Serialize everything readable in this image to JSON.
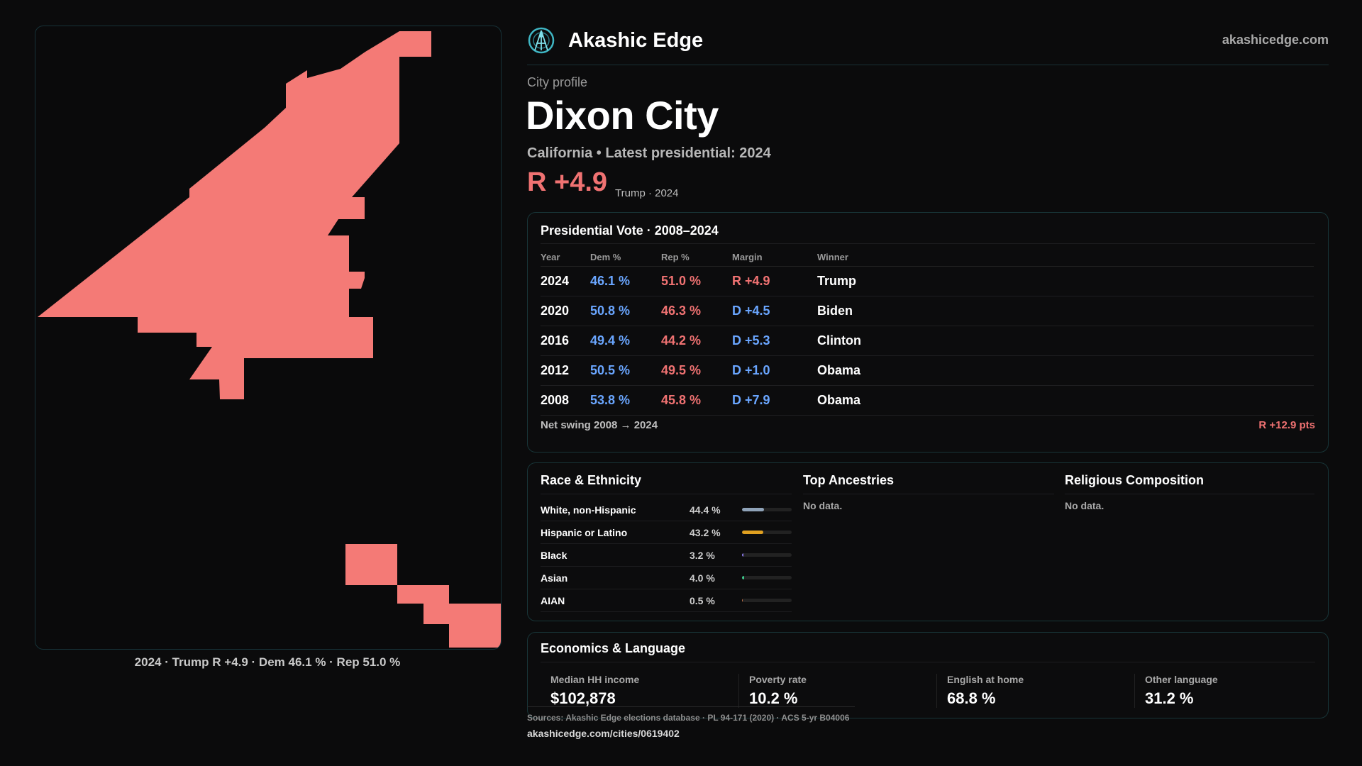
{
  "brand": {
    "name": "Akashic Edge",
    "site": "akashicedge.com",
    "logo_icon": "akashic-edge-logo-icon"
  },
  "profile": {
    "kicker": "City profile",
    "city": "Dixon City",
    "subtitle": "California • Latest presidential: 2024",
    "headline_margin": "R +4.9",
    "headline_note": "Trump · 2024"
  },
  "map": {
    "fill_color": "#f47a76",
    "caption": "2024 · Trump R +4.9 · Dem 46.1 % · Rep 51.0 %"
  },
  "presidential": {
    "title": "Presidential Vote · 2008–2024",
    "columns": [
      "Year",
      "Dem %",
      "Rep %",
      "Margin",
      "Winner"
    ],
    "rows": [
      {
        "year": "2024",
        "dem": "46.1 %",
        "rep": "51.0 %",
        "margin": "R +4.9",
        "party": "R",
        "winner": "Trump"
      },
      {
        "year": "2020",
        "dem": "50.8 %",
        "rep": "46.3 %",
        "margin": "D +4.5",
        "party": "D",
        "winner": "Biden"
      },
      {
        "year": "2016",
        "dem": "49.4 %",
        "rep": "44.2 %",
        "margin": "D +5.3",
        "party": "D",
        "winner": "Clinton"
      },
      {
        "year": "2012",
        "dem": "50.5 %",
        "rep": "49.5 %",
        "margin": "D +1.0",
        "party": "D",
        "winner": "Obama"
      },
      {
        "year": "2008",
        "dem": "53.8 %",
        "rep": "45.8 %",
        "margin": "D +7.9",
        "party": "D",
        "winner": "Obama"
      }
    ],
    "net_swing_label": "Net swing 2008 → 2024",
    "net_swing_value": "R +12.9 pts"
  },
  "colors": {
    "dem": "#6aa6ff",
    "rep": "#f07272"
  },
  "race": {
    "title": "Race & Ethnicity",
    "rows": [
      {
        "label": "White, non-Hispanic",
        "pct": "44.4 %",
        "value": 0.444,
        "color": "#8fa3b8"
      },
      {
        "label": "Hispanic or Latino",
        "pct": "43.2 %",
        "value": 0.432,
        "color": "#e0a020"
      },
      {
        "label": "Black",
        "pct": "3.2 %",
        "value": 0.032,
        "color": "#8c7cf0"
      },
      {
        "label": "Asian",
        "pct": "4.0 %",
        "value": 0.04,
        "color": "#3ec98c"
      },
      {
        "label": "AIAN",
        "pct": "0.5 %",
        "value": 0.005,
        "color": "#c9754a"
      }
    ]
  },
  "ancestries": {
    "title": "Top Ancestries",
    "empty": "No data."
  },
  "religion": {
    "title": "Religious Composition",
    "empty": "No data."
  },
  "economics": {
    "title": "Economics & Language",
    "stats": [
      {
        "label": "Median HH income",
        "value": "$102,878"
      },
      {
        "label": "Poverty rate",
        "value": "10.2 %"
      },
      {
        "label": "English at home",
        "value": "68.8 %"
      },
      {
        "label": "Other language",
        "value": "31.2 %"
      }
    ]
  },
  "footer": {
    "sources": "Sources: Akashic Edge elections database · PL 94-171 (2020) · ACS 5-yr B04006",
    "url": "akashicedge.com/cities/0619402"
  }
}
